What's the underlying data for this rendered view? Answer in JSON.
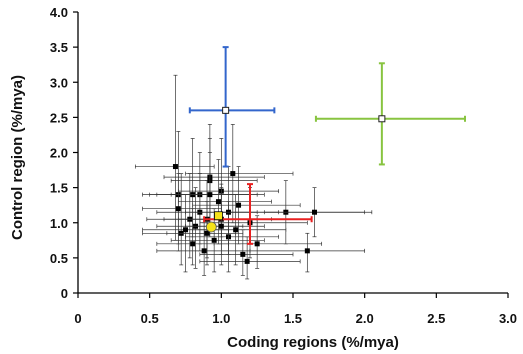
{
  "chart_data": {
    "type": "scatter",
    "title": "",
    "xlabel": "Coding regions (%/mya)",
    "ylabel": "Control region (%/mya)",
    "xlim": [
      0,
      3.0
    ],
    "ylim": [
      0,
      4.0
    ],
    "xticks": [
      "0",
      "0.5",
      "1.0",
      "1.5",
      "2.0",
      "2.5",
      "3.0"
    ],
    "yticks": [
      "0",
      "0.5",
      "1.0",
      "1.5",
      "2.0",
      "2.5",
      "3.0",
      "3.5",
      "4.0"
    ],
    "xtick_values": [
      0,
      0.5,
      1.0,
      1.5,
      2.0,
      2.5,
      3.0
    ],
    "ytick_values": [
      0,
      0.5,
      1.0,
      1.5,
      2.0,
      2.5,
      3.0,
      3.5,
      4.0
    ],
    "grid": false,
    "series": [
      {
        "color": "#000000",
        "marker": "square",
        "points": [
          {
            "x": 0.68,
            "y": 1.8,
            "xl": 0.4,
            "xh": 0.95,
            "yl": 0.75,
            "yh": 3.1
          },
          {
            "x": 0.7,
            "y": 1.4,
            "xl": 0.45,
            "xh": 1.0,
            "yl": 0.6,
            "yh": 2.3
          },
          {
            "x": 0.7,
            "y": 1.2,
            "xl": 0.45,
            "xh": 1.0,
            "yl": 0.7,
            "yh": 1.7
          },
          {
            "x": 0.72,
            "y": 0.85,
            "xl": 0.45,
            "xh": 1.1,
            "yl": 0.4,
            "yh": 1.7
          },
          {
            "x": 0.75,
            "y": 0.9,
            "xl": 0.45,
            "xh": 1.05,
            "yl": 0.3,
            "yh": 1.4
          },
          {
            "x": 0.78,
            "y": 1.05,
            "xl": 0.48,
            "xh": 1.2,
            "yl": 0.5,
            "yh": 1.7
          },
          {
            "x": 0.8,
            "y": 1.4,
            "xl": 0.5,
            "xh": 1.3,
            "yl": 0.8,
            "yh": 2.2
          },
          {
            "x": 0.8,
            "y": 0.7,
            "xl": 0.55,
            "xh": 1.05,
            "yl": 0.4,
            "yh": 1.2
          },
          {
            "x": 0.82,
            "y": 0.95,
            "xl": 0.55,
            "xh": 1.15,
            "yl": 0.35,
            "yh": 1.5
          },
          {
            "x": 0.85,
            "y": 1.4,
            "xl": 0.55,
            "xh": 1.2,
            "yl": 0.7,
            "yh": 2.0
          },
          {
            "x": 0.85,
            "y": 1.15,
            "xl": 0.55,
            "xh": 1.25,
            "yl": 0.6,
            "yh": 1.7
          },
          {
            "x": 0.88,
            "y": 0.6,
            "xl": 0.55,
            "xh": 1.2,
            "yl": 0.25,
            "yh": 1.0
          },
          {
            "x": 0.9,
            "y": 1.05,
            "xl": 0.6,
            "xh": 1.25,
            "yl": 0.5,
            "yh": 1.6
          },
          {
            "x": 0.9,
            "y": 0.85,
            "xl": 0.62,
            "xh": 1.15,
            "yl": 0.4,
            "yh": 1.3
          },
          {
            "x": 0.92,
            "y": 1.65,
            "xl": 0.6,
            "xh": 1.3,
            "yl": 0.9,
            "yh": 2.4
          },
          {
            "x": 0.92,
            "y": 1.6,
            "xl": 0.65,
            "xh": 1.25,
            "yl": 0.95,
            "yh": 2.2
          },
          {
            "x": 0.92,
            "y": 1.4,
            "xl": 0.65,
            "xh": 1.25,
            "yl": 0.8,
            "yh": 2.0
          },
          {
            "x": 0.95,
            "y": 0.75,
            "xl": 0.65,
            "xh": 1.3,
            "yl": 0.3,
            "yh": 1.2
          },
          {
            "x": 0.98,
            "y": 1.3,
            "xl": 0.7,
            "xh": 1.35,
            "yl": 0.7,
            "yh": 1.9
          },
          {
            "x": 1.0,
            "y": 1.45,
            "xl": 0.7,
            "xh": 1.4,
            "yl": 0.8,
            "yh": 2.2
          },
          {
            "x": 1.0,
            "y": 1.05,
            "xl": 0.7,
            "xh": 1.35,
            "yl": 0.55,
            "yh": 1.55
          },
          {
            "x": 1.0,
            "y": 0.95,
            "xl": 0.75,
            "xh": 1.3,
            "yl": 0.4,
            "yh": 1.5
          },
          {
            "x": 1.05,
            "y": 0.8,
            "xl": 0.75,
            "xh": 1.4,
            "yl": 0.3,
            "yh": 1.3
          },
          {
            "x": 1.05,
            "y": 1.15,
            "xl": 0.75,
            "xh": 1.4,
            "yl": 0.55,
            "yh": 1.8
          },
          {
            "x": 1.08,
            "y": 1.7,
            "xl": 0.75,
            "xh": 1.5,
            "yl": 1.0,
            "yh": 2.4
          },
          {
            "x": 1.1,
            "y": 0.9,
            "xl": 0.8,
            "xh": 1.45,
            "yl": 0.4,
            "yh": 1.4
          },
          {
            "x": 1.12,
            "y": 1.25,
            "xl": 0.8,
            "xh": 1.55,
            "yl": 0.7,
            "yh": 1.8
          },
          {
            "x": 1.15,
            "y": 0.55,
            "xl": 0.85,
            "xh": 1.5,
            "yl": 0.25,
            "yh": 0.9
          },
          {
            "x": 1.18,
            "y": 0.45,
            "xl": 0.85,
            "xh": 1.55,
            "yl": 0.2,
            "yh": 0.8
          },
          {
            "x": 1.2,
            "y": 1.0,
            "xl": 0.85,
            "xh": 1.6,
            "yl": 0.5,
            "yh": 1.5
          },
          {
            "x": 1.25,
            "y": 0.7,
            "xl": 0.95,
            "xh": 1.7,
            "yl": 0.35,
            "yh": 1.1
          },
          {
            "x": 1.45,
            "y": 1.15,
            "xl": 1.0,
            "xh": 2.0,
            "yl": 0.7,
            "yh": 1.6
          },
          {
            "x": 1.6,
            "y": 0.6,
            "xl": 1.2,
            "xh": 2.0,
            "yl": 0.3,
            "yh": 0.85
          },
          {
            "x": 1.65,
            "y": 1.15,
            "xl": 1.3,
            "xh": 2.05,
            "yl": 0.8,
            "yh": 1.5
          }
        ]
      },
      {
        "color": "#3366cc",
        "marker": "open-square",
        "points": [
          {
            "x": 1.03,
            "y": 2.6,
            "xl": 0.78,
            "xh": 1.37,
            "yl": 1.8,
            "yh": 3.5
          }
        ]
      },
      {
        "color": "#88c440",
        "marker": "open-square",
        "points": [
          {
            "x": 2.12,
            "y": 2.48,
            "xl": 1.66,
            "xh": 2.7,
            "yl": 1.83,
            "yh": 3.27
          }
        ]
      },
      {
        "color": "#e82020",
        "marker": "none",
        "points": [
          {
            "x": 1.2,
            "y": 1.05,
            "xl": 0.88,
            "xh": 1.63,
            "yl": 0.7,
            "yh": 1.55
          }
        ]
      },
      {
        "color": "#f5e21a",
        "marker": "square",
        "points": [
          {
            "x": 0.98,
            "y": 1.1
          }
        ]
      },
      {
        "color": "#f5e21a",
        "marker": "circle",
        "points": [
          {
            "x": 0.93,
            "y": 0.94
          }
        ]
      }
    ]
  }
}
